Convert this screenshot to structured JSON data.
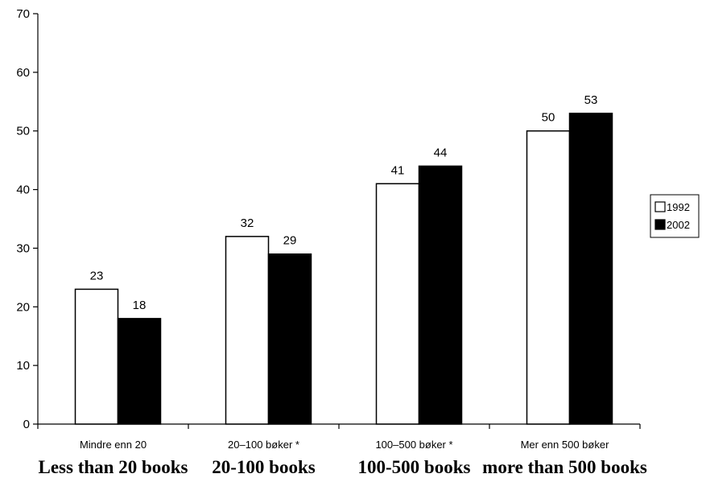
{
  "chart_data": {
    "type": "bar",
    "categories": [
      "Mindre enn 20",
      "20–100 bøker *",
      "100–500 bøker *",
      "Mer enn 500 bøker"
    ],
    "categories_english": [
      "Less than 20 books",
      "20-100 books",
      "100-500 books",
      "more than 500 books"
    ],
    "series": [
      {
        "name": "1992",
        "values": [
          23,
          32,
          41,
          50
        ],
        "data_labels": [
          "23",
          "32",
          "41",
          "50"
        ],
        "color": "#ffffff",
        "stroke": "#000000"
      },
      {
        "name": "2002",
        "values": [
          18,
          29,
          44,
          53
        ],
        "data_labels": [
          "18",
          "29",
          "44",
          "53"
        ],
        "color": "#000000",
        "stroke": "#000000"
      }
    ],
    "ylim": [
      0,
      70
    ],
    "yticks": [
      0,
      10,
      20,
      30,
      40,
      50,
      60,
      70
    ],
    "title": "",
    "xlabel": "",
    "ylabel": "",
    "grid": false,
    "legend_position": "right"
  }
}
